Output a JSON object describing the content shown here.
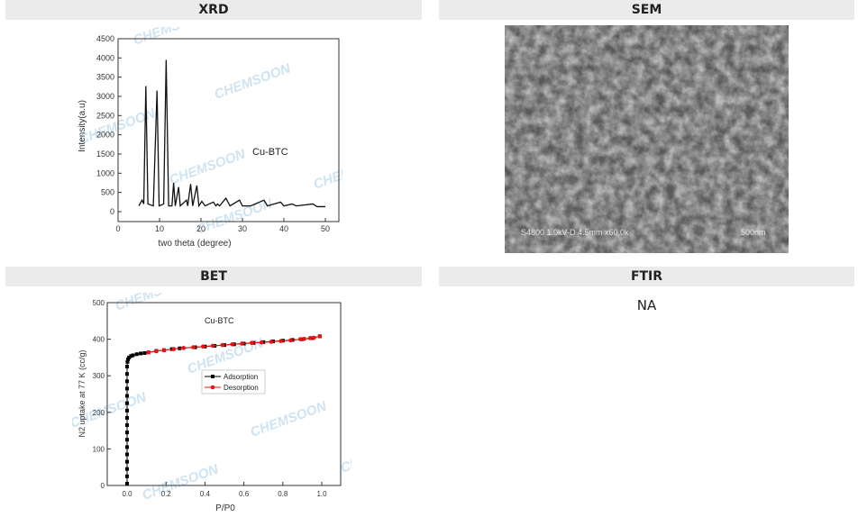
{
  "panels": {
    "xrd": {
      "title": "XRD"
    },
    "sem": {
      "title": "SEM",
      "caption": "S4800 1.0kV-D 4.5mm x60.0k",
      "scale_bar": "500nm"
    },
    "bet": {
      "title": "BET"
    },
    "ftir": {
      "title": "FTIR",
      "value": "NA"
    }
  },
  "watermark": "CHEMSOON",
  "chart_data": [
    {
      "type": "line",
      "annotation": "Cu-BTC",
      "xlabel": "two theta (degree)",
      "ylabel": "Intensity(a.u)",
      "xlim": [
        0,
        53
      ],
      "ylim": [
        -250,
        4500
      ],
      "xticks": [
        0,
        10,
        20,
        30,
        40,
        50
      ],
      "yticks": [
        0,
        500,
        1000,
        1500,
        2000,
        2500,
        3000,
        3500,
        4000,
        4500
      ],
      "series": [
        {
          "color": "#111111",
          "x": [
            5,
            5.8,
            6.2,
            6.7,
            7.2,
            8.5,
            9.4,
            9.9,
            11,
            11.6,
            12.2,
            13,
            13.4,
            13.8,
            14.6,
            15,
            16.5,
            16.8,
            17.5,
            18,
            19,
            19.5,
            20.2,
            21,
            23,
            23.6,
            24,
            24.5,
            26,
            27,
            29.3,
            30,
            32,
            35.2,
            36,
            39.2,
            40,
            42,
            43,
            47,
            48,
            50
          ],
          "y": [
            150,
            300,
            200,
            3270,
            200,
            150,
            3150,
            150,
            200,
            3950,
            150,
            150,
            750,
            150,
            640,
            150,
            300,
            150,
            720,
            150,
            680,
            150,
            270,
            150,
            250,
            150,
            200,
            150,
            350,
            150,
            300,
            150,
            150,
            300,
            150,
            250,
            150,
            200,
            150,
            200,
            130,
            130
          ]
        }
      ]
    },
    {
      "type": "scatter",
      "annotation": "Cu-BTC",
      "xlabel": "P/P0",
      "ylabel": "N2 uptake at 77 K (cc/g)",
      "xlim": [
        -0.1,
        1.1
      ],
      "ylim": [
        0,
        500
      ],
      "xticks": [
        "0.0",
        "0.2",
        "0.4",
        "0.6",
        "0.8",
        "1.0"
      ],
      "yticks": [
        0,
        100,
        200,
        300,
        400,
        500
      ],
      "legend": "center",
      "series": [
        {
          "name": "Adsorption",
          "color": "#000000",
          "x": [
            0,
            0,
            0,
            0,
            0,
            0,
            0,
            0,
            0,
            0,
            0,
            0,
            0,
            0,
            0,
            0,
            0,
            0.002,
            0.005,
            0.01,
            0.02,
            0.03,
            0.05,
            0.07,
            0.09,
            0.11,
            0.15,
            0.19,
            0.23,
            0.27,
            0.35,
            0.4,
            0.45,
            0.5,
            0.55,
            0.6,
            0.65,
            0.7,
            0.75,
            0.8,
            0.85,
            0.9,
            0.95,
            0.99
          ],
          "y": [
            5,
            25,
            45,
            65,
            85,
            105,
            125,
            145,
            165,
            185,
            205,
            225,
            245,
            265,
            285,
            305,
            325,
            338,
            345,
            350,
            354,
            356,
            359,
            361,
            362,
            364,
            368,
            370,
            373,
            375,
            378,
            380,
            382,
            384,
            386,
            388,
            390,
            392,
            394,
            396,
            398,
            400,
            403,
            408
          ]
        },
        {
          "name": "Desorption",
          "color": "#ee1111",
          "x": [
            0.11,
            0.15,
            0.19,
            0.24,
            0.29,
            0.34,
            0.39,
            0.44,
            0.49,
            0.54,
            0.59,
            0.64,
            0.69,
            0.74,
            0.79,
            0.84,
            0.89,
            0.91,
            0.94,
            0.96,
            0.99
          ],
          "y": [
            364,
            367,
            370,
            373,
            376,
            378,
            380,
            382,
            384,
            386,
            388,
            390,
            391,
            393,
            395,
            397,
            400,
            401,
            403,
            404,
            408
          ]
        }
      ]
    }
  ]
}
